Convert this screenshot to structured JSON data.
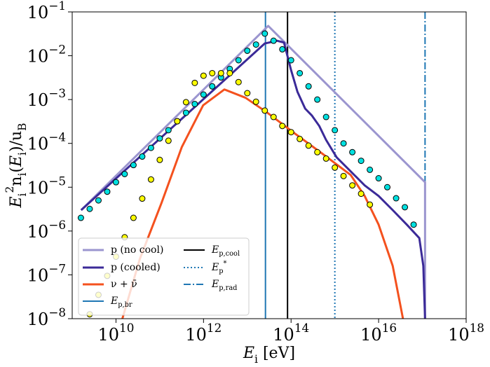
{
  "chart_data": {
    "type": "line",
    "xlabel": "Ei [eV]",
    "ylabel": "Ei2ni(Ei)/uB",
    "xscale": "log",
    "yscale": "log",
    "xlim": [
      1000000000.0,
      1e+18
    ],
    "ylim": [
      1e-08,
      0.1
    ],
    "xticks": [
      {
        "value": 10000000000.0,
        "label": "1010"
      },
      {
        "value": 1000000000000.0,
        "label": "1012"
      },
      {
        "value": 100000000000000.0,
        "label": "1014"
      },
      {
        "value": 1e+16,
        "label": "1016"
      },
      {
        "value": 1e+18,
        "label": "1018"
      }
    ],
    "yticks": [
      {
        "value": 1e-08,
        "label": "10−8"
      },
      {
        "value": 1e-07,
        "label": "10−7"
      },
      {
        "value": 1e-06,
        "label": "10−6"
      },
      {
        "value": 1e-05,
        "label": "10−5"
      },
      {
        "value": 0.0001,
        "label": "10−4"
      },
      {
        "value": 0.001,
        "label": "10−3"
      },
      {
        "value": 0.01,
        "label": "10−2"
      },
      {
        "value": 0.1,
        "label": "10−1"
      }
    ],
    "grid": false,
    "legend": "lower left",
    "series": [
      {
        "name": "p (no cool)",
        "type": "line",
        "color": "#9b95cf",
        "x": [
          1600000000.0,
          30000000000000.0,
          1.15e+17,
          1.15e+17
        ],
        "values": [
          3e-06,
          0.048,
          1.3e-05,
          1e-08
        ]
      },
      {
        "name": "p (cooled)",
        "type": "line",
        "color": "#3b2a98",
        "x": [
          1600000000.0,
          25000000000000.0,
          48000000000000.0,
          69000000000000.0,
          100000000000000.0,
          140000000000000.0,
          210000000000000.0,
          300000000000000.0,
          440000000000000.0,
          630000000000000.0,
          1100000000000000.0,
          2300000000000000.0,
          4800000000000000.0,
          1e+16,
          2.1e+16,
          4.4e+16,
          8.5e+16,
          1.05e+17,
          1.15e+17
        ],
        "values": [
          3e-06,
          0.019,
          0.022,
          0.02,
          0.0047,
          0.0015,
          0.00062,
          0.00043,
          0.00025,
          0.00012,
          4.8e-05,
          2.3e-05,
          1.1e-05,
          6.3e-06,
          3e-06,
          1.4e-06,
          6.9e-07,
          1.6e-07,
          1e-08
        ]
      },
      {
        "name": "ν + ν̄",
        "type": "line",
        "color": "#f4511e",
        "x": [
          14000000000.0,
          35000000000.0,
          110000000000.0,
          320000000000.0,
          980000000000.0,
          3000000000000.0,
          9100000000000.0,
          28000000000000.0,
          120000000000000.0,
          520000000000000.0,
          2300000000000000.0,
          4800000000000000.0,
          1e+16,
          2.1e+16,
          3.6e+16
        ],
        "values": [
          1e-08,
          2.3e-07,
          4.4e-06,
          8.3e-05,
          0.00074,
          0.0017,
          0.0011,
          0.00051,
          0.00017,
          5.8e-05,
          1.9e-05,
          6.3e-06,
          1.4e-06,
          1.6e-07,
          1e-08
        ]
      },
      {
        "type": "scatter",
        "color": "#00e0e0",
        "x": [
          1580000000.0,
          2510000000.0,
          3980000000.0,
          6310000000.0,
          10000000000.0,
          15800000000.0,
          25100000000.0,
          39800000000.0,
          63100000000.0,
          100000000000.0,
          158000000000.0,
          251000000000.0,
          398000000000.0,
          631000000000.0,
          1000000000000.0,
          1580000000000.0,
          2510000000000.0,
          3980000000000.0,
          6310000000000.0,
          10000000000000.0,
          15800000000000.0,
          25100000000000.0,
          39800000000000.0,
          63100000000000.0,
          100000000000000.0,
          158000000000000.0,
          251000000000000.0,
          398000000000000.0,
          631000000000000.0,
          1000000000000000.0,
          1580000000000000.0,
          2510000000000000.0,
          3980000000000000.0,
          6310000000000000.0,
          1e+16,
          1.58e+16,
          2.51e+16,
          3.98e+16,
          6.31e+16
        ],
        "values": [
          2e-06,
          3.2e-06,
          5e-06,
          7.9e-06,
          1.3e-05,
          2e-05,
          3.2e-05,
          5e-05,
          7.9e-05,
          0.00013,
          0.0002,
          0.00032,
          0.0005,
          0.00079,
          0.0013,
          0.002,
          0.0032,
          0.005,
          0.0079,
          0.013,
          0.018,
          0.032,
          0.022,
          0.014,
          0.0079,
          0.004,
          0.002,
          0.001,
          0.0004,
          0.0002,
          0.0001,
          6.3e-05,
          4e-05,
          2.5e-05,
          1.6e-05,
          1e-05,
          5.6e-06,
          3.5e-06,
          1.4e-06
        ]
      },
      {
        "type": "scatter",
        "color": "#ffff00",
        "x": [
          2510000000.0,
          3980000000.0,
          6310000000.0,
          10000000000.0,
          15800000000.0,
          25100000000.0,
          39800000000.0,
          63100000000.0,
          100000000000.0,
          158000000000.0,
          251000000000.0,
          398000000000.0,
          631000000000.0,
          1000000000000.0,
          1580000000000.0,
          2510000000000.0,
          3980000000000.0,
          6310000000000.0,
          10000000000000.0,
          15800000000000.0,
          25100000000000.0,
          39800000000000.0,
          63100000000000.0,
          100000000000000.0,
          158000000000000.0,
          251000000000000.0,
          398000000000000.0,
          631000000000000.0,
          1000000000000000.0,
          1580000000000000.0,
          2510000000000000.0,
          3980000000000000.0,
          6310000000000000.0
        ],
        "values": [
          1.26e-08,
          3.5e-08,
          9.5e-08,
          2.6e-07,
          7.2e-07,
          2e-06,
          5.5e-06,
          1.5e-05,
          4.2e-05,
          0.000115,
          0.00032,
          0.00087,
          0.0024,
          0.0035,
          0.004,
          0.004,
          0.004,
          0.0025,
          0.0014,
          0.00089,
          0.00056,
          0.0004,
          0.00025,
          0.00018,
          0.000126,
          8.9e-05,
          6.3e-05,
          4.5e-05,
          2.8e-05,
          1.8e-05,
          1.1e-05,
          7.1e-06,
          4e-06
        ]
      }
    ],
    "vlines": [
      {
        "name": "Ep,br",
        "x": 26000000000000.0,
        "color": "#1f77b4",
        "dash": "solid"
      },
      {
        "name": "Ep,cool",
        "x": 83000000000000.0,
        "color": "#000000",
        "dash": "solid"
      },
      {
        "name": "Ep*",
        "x": 1000000000000000.0,
        "color": "#1f77b4",
        "dash": "dotted"
      },
      {
        "name": "Ep,rad",
        "x": 1.15e+17,
        "color": "#1f77b4",
        "dash": "dashdot"
      }
    ]
  }
}
